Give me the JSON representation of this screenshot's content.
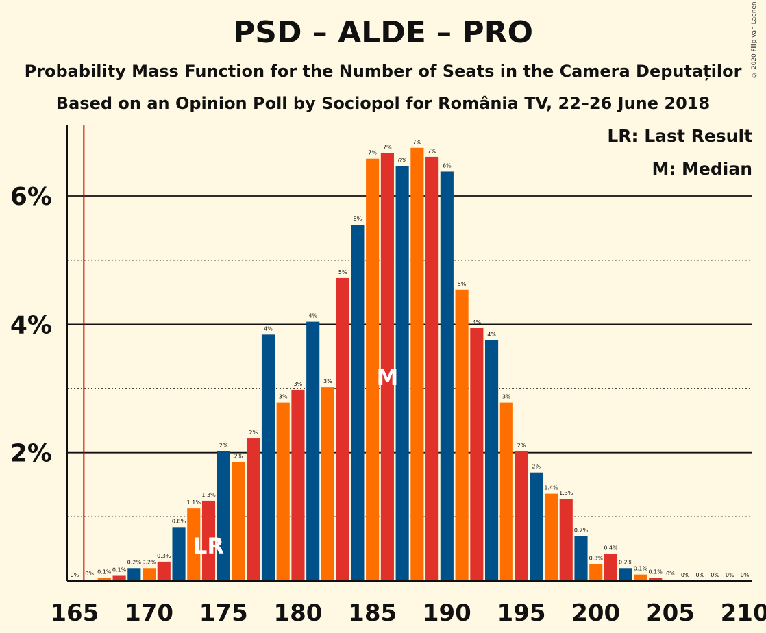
{
  "title": "PSD – ALDE – PRO",
  "subtitle1": "Probability Mass Function for the Number of Seats in the Camera Deputaților",
  "subtitle2": "Based on an Opinion Poll by Sociopol for România TV, 22–26 June 2018",
  "copyright": "© 2020 Filip van Laenen",
  "legend": {
    "lr": "LR: Last Result",
    "m": "M: Median"
  },
  "markers": {
    "lr_label": "LR",
    "m_label": "M",
    "last_result": 166,
    "median": 186
  },
  "colors": {
    "blue": "#00518A",
    "orange": "#FF6F00",
    "red": "#E0312B",
    "lr_line": "#CC0000",
    "background": "#FFF9E3"
  },
  "chart_data": {
    "type": "bar",
    "xlim": [
      165,
      210
    ],
    "ylim": [
      0,
      7.1
    ],
    "x_ticks": [
      165,
      170,
      175,
      180,
      185,
      190,
      195,
      200,
      205,
      210
    ],
    "y_ticks": [
      {
        "value": 2,
        "label": "2%"
      },
      {
        "value": 4,
        "label": "4%"
      },
      {
        "value": 6,
        "label": "6%"
      }
    ],
    "dotted_gridlines": [
      1,
      3,
      5
    ],
    "seats": [
      165,
      166,
      167,
      168,
      169,
      170,
      171,
      172,
      173,
      174,
      175,
      176,
      177,
      178,
      179,
      180,
      181,
      182,
      183,
      184,
      185,
      186,
      187,
      188,
      189,
      190,
      191,
      192,
      193,
      194,
      195,
      196,
      197,
      198,
      199,
      200,
      201,
      202,
      203,
      204,
      205,
      206,
      207,
      208,
      209,
      210
    ],
    "values": [
      0,
      0.02,
      0.05,
      0.08,
      0.2,
      0.2,
      0.3,
      0.84,
      1.13,
      1.25,
      2.02,
      1.85,
      2.22,
      3.84,
      2.78,
      2.98,
      4.04,
      3.02,
      4.72,
      5.55,
      6.58,
      6.67,
      6.46,
      6.75,
      6.61,
      6.38,
      4.54,
      3.94,
      3.75,
      2.78,
      2.02,
      1.69,
      1.36,
      1.28,
      0.7,
      0.26,
      0.42,
      0.2,
      0.1,
      0.05,
      0.02,
      0,
      0,
      0,
      0,
      0
    ],
    "labels": [
      "0%",
      "0%",
      "0.1%",
      "0.1%",
      "0.2%",
      "0.2%",
      "0.3%",
      "0.8%",
      "1.1%",
      "1.3%",
      "2%",
      "2%",
      "2%",
      "4%",
      "3%",
      "3%",
      "4%",
      "3%",
      "5%",
      "6%",
      "7%",
      "7%",
      "6%",
      "7%",
      "7%",
      "6%",
      "5%",
      "4%",
      "4%",
      "3%",
      "2%",
      "2%",
      "1.4%",
      "1.3%",
      "0.7%",
      "0.3%",
      "0.4%",
      "0.2%",
      "0.1%",
      "0.1%",
      "0%",
      "0%",
      "0%",
      "0%",
      "0%",
      "0%"
    ]
  }
}
